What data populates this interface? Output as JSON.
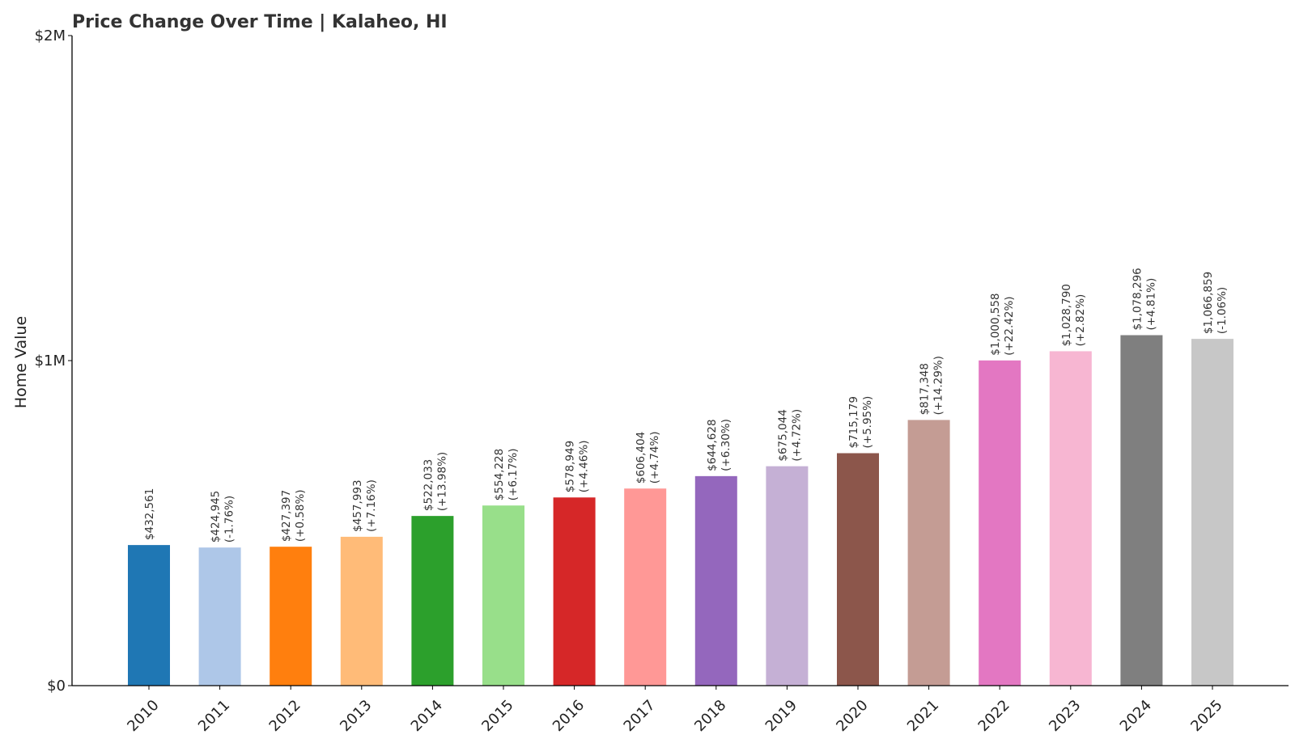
{
  "chart_data": {
    "type": "bar",
    "title": "Price Change Over Time | Kalaheo, HI",
    "xlabel": "",
    "ylabel": "Home Value",
    "ylim": [
      0,
      2000000
    ],
    "yticks": [
      {
        "value": 0,
        "label": "$0"
      },
      {
        "value": 1000000,
        "label": "$1M"
      },
      {
        "value": 2000000,
        "label": "$2M"
      }
    ],
    "grid": false,
    "categories": [
      "2010",
      "2011",
      "2012",
      "2013",
      "2014",
      "2015",
      "2016",
      "2017",
      "2018",
      "2019",
      "2020",
      "2021",
      "2022",
      "2023",
      "2024",
      "2025"
    ],
    "values": [
      432561,
      424945,
      427397,
      457993,
      522033,
      554228,
      578949,
      606404,
      644628,
      675044,
      715179,
      817348,
      1000558,
      1028790,
      1078296,
      1066859
    ],
    "value_labels": [
      "$432,561",
      "$424,945",
      "$427,397",
      "$457,993",
      "$522,033",
      "$554,228",
      "$578,949",
      "$606,404",
      "$644,628",
      "$675,044",
      "$715,179",
      "$817,348",
      "$1,000,558",
      "$1,028,790",
      "$1,078,296",
      "$1,066,859"
    ],
    "change_labels": [
      "",
      "(-1.76%)",
      "(+0.58%)",
      "(+7.16%)",
      "(+13.98%)",
      "(+6.17%)",
      "(+4.46%)",
      "(+4.74%)",
      "(+6.30%)",
      "(+4.72%)",
      "(+5.95%)",
      "(+14.29%)",
      "(+22.42%)",
      "(+2.82%)",
      "(+4.81%)",
      "(-1.06%)"
    ],
    "colors": [
      "#1f77b4",
      "#aec7e8",
      "#ff7f0e",
      "#ffbb78",
      "#2ca02c",
      "#98df8a",
      "#d62728",
      "#ff9896",
      "#9467bd",
      "#c5b0d5",
      "#8c564b",
      "#c49c94",
      "#e377c2",
      "#f7b6d2",
      "#7f7f7f",
      "#c7c7c7"
    ]
  }
}
